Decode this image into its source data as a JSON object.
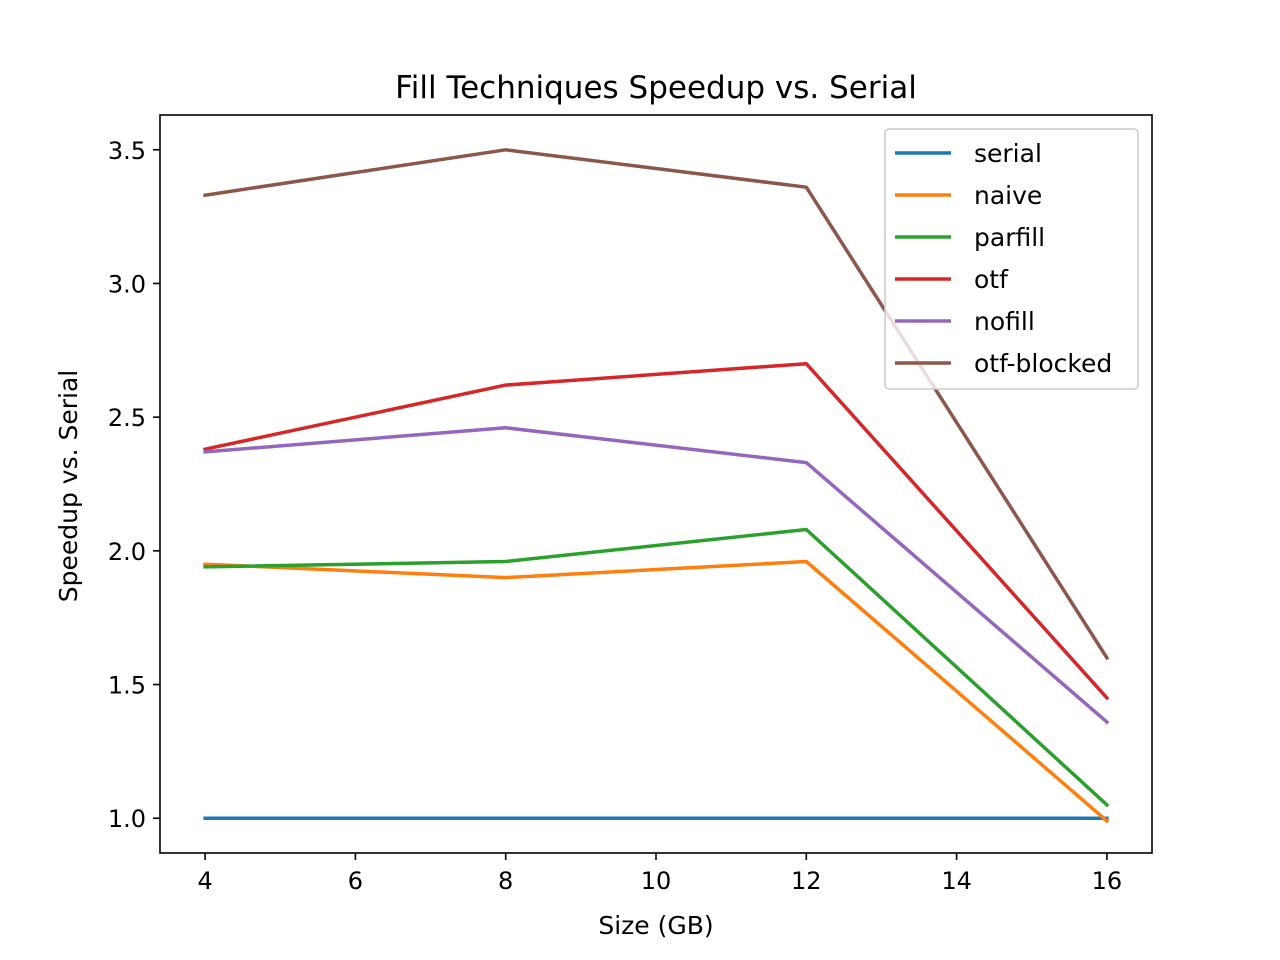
{
  "chart_data": {
    "type": "line",
    "title": "Fill Techniques Speedup vs. Serial",
    "xlabel": "Size (GB)",
    "ylabel": "Speedup vs. Serial",
    "x": [
      4,
      8,
      12,
      16
    ],
    "xlim": [
      3.4,
      16.6
    ],
    "ylim": [
      0.87,
      3.63
    ],
    "xticks": [
      4,
      6,
      8,
      10,
      12,
      14,
      16
    ],
    "yticks": [
      1.0,
      1.5,
      2.0,
      2.5,
      3.0,
      3.5
    ],
    "xtick_labels": [
      "4",
      "6",
      "8",
      "10",
      "12",
      "14",
      "16"
    ],
    "ytick_labels": [
      "1.0",
      "1.5",
      "2.0",
      "2.5",
      "3.0",
      "3.5"
    ],
    "grid": false,
    "legend_position": "top-right",
    "series": [
      {
        "name": "serial",
        "color": "#1f77b4",
        "values": [
          1.0,
          1.0,
          1.0,
          1.0
        ]
      },
      {
        "name": "naive",
        "color": "#ff7f0e",
        "values": [
          1.95,
          1.9,
          1.96,
          0.99
        ]
      },
      {
        "name": "parfill",
        "color": "#2ca02c",
        "values": [
          1.94,
          1.96,
          2.08,
          1.05
        ]
      },
      {
        "name": "otf",
        "color": "#d62728",
        "values": [
          2.38,
          2.62,
          2.7,
          1.45
        ]
      },
      {
        "name": "nofill",
        "color": "#9467bd",
        "values": [
          2.37,
          2.46,
          2.33,
          1.36
        ]
      },
      {
        "name": "otf-blocked",
        "color": "#8c564b",
        "values": [
          3.33,
          3.5,
          3.36,
          1.6
        ]
      }
    ]
  }
}
